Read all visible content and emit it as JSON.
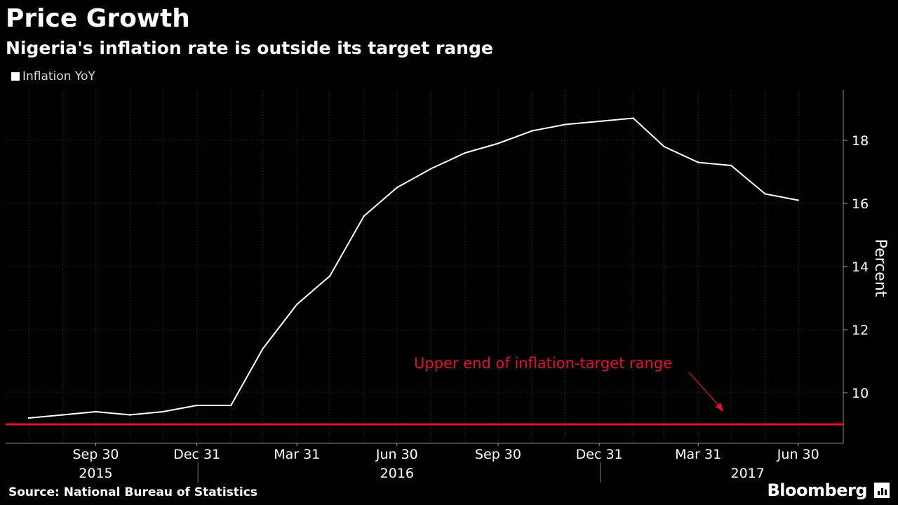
{
  "header": {
    "title": "Price Growth",
    "subtitle": "Nigeria's inflation rate is outside its target range"
  },
  "legend": {
    "label": "Inflation YoY"
  },
  "footer": {
    "source": "Source: National Bureau of Statistics",
    "brand": "Bloomberg"
  },
  "colors": {
    "background": "#000000",
    "series": "#ffffff",
    "target_line": "#e8102e",
    "grid": "#3a3a3a"
  },
  "chart_data": {
    "type": "line",
    "title": "Price Growth",
    "subtitle": "Nigeria's inflation rate is outside its target range",
    "ylabel": "Percent",
    "ylim": [
      8.4,
      19.6
    ],
    "yticks": [
      10,
      12,
      14,
      16,
      18
    ],
    "x": [
      "2015-07-31",
      "2015-08-31",
      "2015-09-30",
      "2015-10-31",
      "2015-11-30",
      "2015-12-31",
      "2016-01-31",
      "2016-02-29",
      "2016-03-31",
      "2016-04-30",
      "2016-05-31",
      "2016-06-30",
      "2016-07-31",
      "2016-08-31",
      "2016-09-30",
      "2016-10-31",
      "2016-11-30",
      "2016-12-31",
      "2017-01-31",
      "2017-02-28",
      "2017-03-31",
      "2017-04-30",
      "2017-05-31",
      "2017-06-30"
    ],
    "series": [
      {
        "name": "Inflation YoY",
        "values": [
          9.2,
          9.3,
          9.4,
          9.3,
          9.4,
          9.6,
          9.6,
          11.4,
          12.8,
          13.7,
          15.6,
          16.5,
          17.1,
          17.6,
          17.9,
          18.3,
          18.5,
          18.6,
          18.7,
          17.8,
          17.3,
          17.2,
          16.3,
          16.1
        ]
      }
    ],
    "x_tick_labels": [
      "Sep 30",
      "Dec 31",
      "Mar 31",
      "Jun 30",
      "Sep 30",
      "Dec 31",
      "Mar 31",
      "Jun 30"
    ],
    "x_tick_dates": [
      "2015-09-30",
      "2015-12-31",
      "2016-03-31",
      "2016-06-30",
      "2016-09-30",
      "2016-12-31",
      "2017-03-31",
      "2017-06-30"
    ],
    "year_labels": [
      "2015",
      "2016",
      "2017"
    ],
    "year_label_dates": [
      "2015-09-30",
      "2016-06-30",
      "2017-05-15"
    ],
    "year_divider_dates": [
      "2016-01-01",
      "2017-01-01"
    ],
    "reference_line": {
      "value": 9,
      "label": "Upper end of inflation-target range"
    },
    "grid": true
  }
}
